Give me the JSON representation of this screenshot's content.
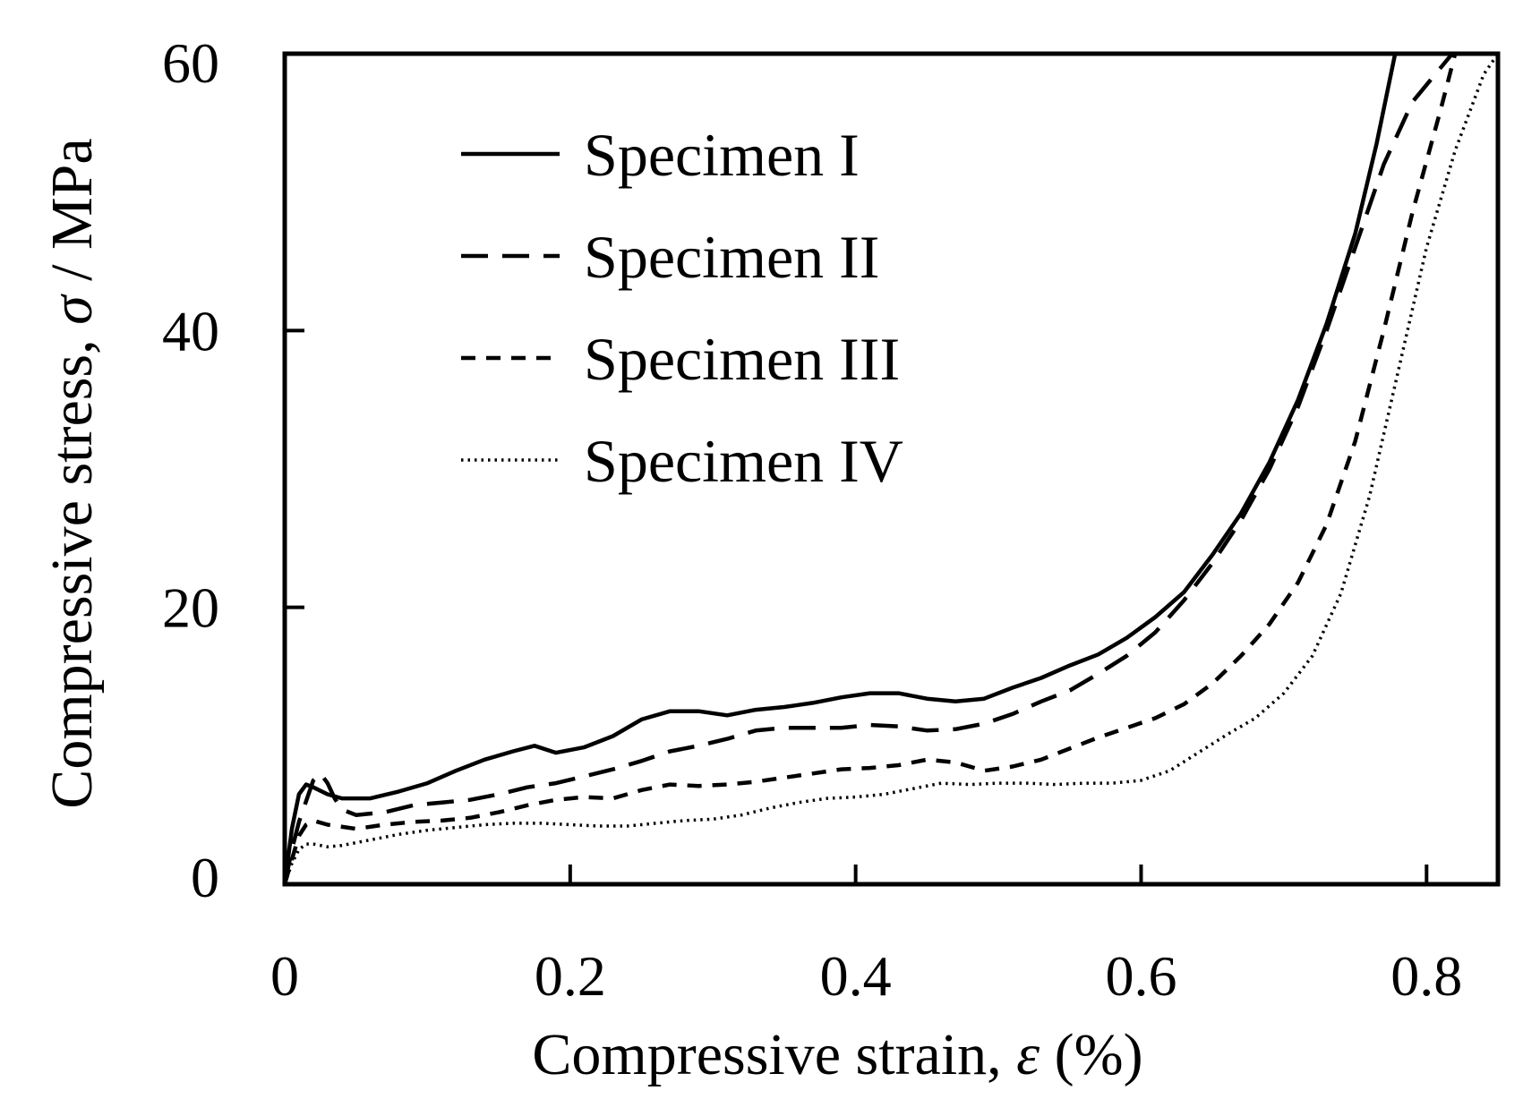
{
  "chart_data": {
    "type": "line",
    "title": "",
    "xlabel": "Compressive strain, ",
    "xlabel_symbol": "ε",
    "xlabel_unit": " (%)",
    "ylabel": "Compressive stress, ",
    "ylabel_symbol": "σ",
    "ylabel_unit": " / MPa",
    "xlim": [
      0,
      0.85
    ],
    "ylim": [
      0,
      60
    ],
    "xticks": [
      {
        "value": 0,
        "label": "0"
      },
      {
        "value": 0.2,
        "label": "0.2"
      },
      {
        "value": 0.4,
        "label": "0.4"
      },
      {
        "value": 0.6,
        "label": "0.6"
      },
      {
        "value": 0.8,
        "label": "0.8"
      }
    ],
    "yticks": [
      {
        "value": 0,
        "label": "0"
      },
      {
        "value": 20,
        "label": "20"
      },
      {
        "value": 40,
        "label": "40"
      },
      {
        "value": 60,
        "label": "60"
      }
    ],
    "grid": false,
    "legend_position": "top-left",
    "series": [
      {
        "name": "Specimen I",
        "style": "solid",
        "points": [
          [
            0,
            0
          ],
          [
            0.005,
            4
          ],
          [
            0.01,
            6.5
          ],
          [
            0.015,
            7.2
          ],
          [
            0.02,
            7.0
          ],
          [
            0.03,
            6.5
          ],
          [
            0.04,
            6.2
          ],
          [
            0.06,
            6.2
          ],
          [
            0.08,
            6.7
          ],
          [
            0.1,
            7.3
          ],
          [
            0.12,
            8.2
          ],
          [
            0.14,
            9.0
          ],
          [
            0.16,
            9.6
          ],
          [
            0.175,
            10.0
          ],
          [
            0.19,
            9.5
          ],
          [
            0.21,
            9.9
          ],
          [
            0.23,
            10.7
          ],
          [
            0.25,
            11.9
          ],
          [
            0.27,
            12.5
          ],
          [
            0.29,
            12.5
          ],
          [
            0.31,
            12.2
          ],
          [
            0.33,
            12.6
          ],
          [
            0.35,
            12.8
          ],
          [
            0.37,
            13.1
          ],
          [
            0.39,
            13.5
          ],
          [
            0.41,
            13.8
          ],
          [
            0.43,
            13.8
          ],
          [
            0.45,
            13.4
          ],
          [
            0.47,
            13.2
          ],
          [
            0.49,
            13.4
          ],
          [
            0.51,
            14.2
          ],
          [
            0.53,
            14.9
          ],
          [
            0.55,
            15.8
          ],
          [
            0.57,
            16.6
          ],
          [
            0.59,
            17.8
          ],
          [
            0.61,
            19.3
          ],
          [
            0.63,
            21.1
          ],
          [
            0.65,
            23.8
          ],
          [
            0.67,
            26.8
          ],
          [
            0.69,
            30.5
          ],
          [
            0.71,
            35.0
          ],
          [
            0.73,
            40.5
          ],
          [
            0.75,
            47.0
          ],
          [
            0.765,
            53.5
          ],
          [
            0.778,
            60.0
          ]
        ]
      },
      {
        "name": "Specimen II",
        "style": "long-dash",
        "points": [
          [
            0,
            0
          ],
          [
            0.005,
            2.5
          ],
          [
            0.01,
            4.5
          ],
          [
            0.015,
            6.0
          ],
          [
            0.02,
            7.5
          ],
          [
            0.025,
            8.0
          ],
          [
            0.03,
            7.3
          ],
          [
            0.035,
            6.2
          ],
          [
            0.04,
            5.4
          ],
          [
            0.05,
            5.0
          ],
          [
            0.07,
            5.2
          ],
          [
            0.09,
            5.7
          ],
          [
            0.11,
            5.9
          ],
          [
            0.13,
            6.1
          ],
          [
            0.15,
            6.5
          ],
          [
            0.17,
            7.0
          ],
          [
            0.19,
            7.3
          ],
          [
            0.21,
            7.8
          ],
          [
            0.23,
            8.3
          ],
          [
            0.25,
            8.9
          ],
          [
            0.27,
            9.6
          ],
          [
            0.29,
            10.0
          ],
          [
            0.31,
            10.5
          ],
          [
            0.33,
            11.1
          ],
          [
            0.35,
            11.3
          ],
          [
            0.37,
            11.3
          ],
          [
            0.39,
            11.3
          ],
          [
            0.41,
            11.5
          ],
          [
            0.43,
            11.4
          ],
          [
            0.45,
            11.1
          ],
          [
            0.47,
            11.2
          ],
          [
            0.49,
            11.6
          ],
          [
            0.51,
            12.3
          ],
          [
            0.53,
            13.2
          ],
          [
            0.55,
            14.0
          ],
          [
            0.57,
            15.2
          ],
          [
            0.59,
            16.5
          ],
          [
            0.61,
            18.2
          ],
          [
            0.63,
            20.5
          ],
          [
            0.65,
            23.2
          ],
          [
            0.67,
            26.3
          ],
          [
            0.69,
            30.0
          ],
          [
            0.71,
            34.5
          ],
          [
            0.73,
            40.0
          ],
          [
            0.75,
            46.0
          ],
          [
            0.77,
            52.0
          ],
          [
            0.79,
            56.5
          ],
          [
            0.81,
            59.0
          ],
          [
            0.818,
            60.0
          ]
        ]
      },
      {
        "name": "Specimen III",
        "style": "short-dash",
        "points": [
          [
            0,
            0
          ],
          [
            0.005,
            1.8
          ],
          [
            0.01,
            3.5
          ],
          [
            0.015,
            4.3
          ],
          [
            0.02,
            4.6
          ],
          [
            0.03,
            4.3
          ],
          [
            0.05,
            4.0
          ],
          [
            0.07,
            4.3
          ],
          [
            0.09,
            4.5
          ],
          [
            0.11,
            4.6
          ],
          [
            0.13,
            4.8
          ],
          [
            0.15,
            5.2
          ],
          [
            0.17,
            5.7
          ],
          [
            0.19,
            6.1
          ],
          [
            0.21,
            6.3
          ],
          [
            0.23,
            6.2
          ],
          [
            0.25,
            6.8
          ],
          [
            0.27,
            7.2
          ],
          [
            0.29,
            7.1
          ],
          [
            0.31,
            7.2
          ],
          [
            0.33,
            7.4
          ],
          [
            0.35,
            7.7
          ],
          [
            0.37,
            8.0
          ],
          [
            0.39,
            8.3
          ],
          [
            0.41,
            8.4
          ],
          [
            0.43,
            8.6
          ],
          [
            0.45,
            9.0
          ],
          [
            0.47,
            8.8
          ],
          [
            0.49,
            8.2
          ],
          [
            0.51,
            8.5
          ],
          [
            0.53,
            9.0
          ],
          [
            0.55,
            9.8
          ],
          [
            0.57,
            10.6
          ],
          [
            0.59,
            11.3
          ],
          [
            0.61,
            12.0
          ],
          [
            0.63,
            13.0
          ],
          [
            0.65,
            14.5
          ],
          [
            0.67,
            16.5
          ],
          [
            0.69,
            18.8
          ],
          [
            0.71,
            21.8
          ],
          [
            0.73,
            26.0
          ],
          [
            0.75,
            32.0
          ],
          [
            0.77,
            40.0
          ],
          [
            0.79,
            48.5
          ],
          [
            0.81,
            56.0
          ],
          [
            0.82,
            60.0
          ]
        ]
      },
      {
        "name": "Specimen IV",
        "style": "dotted",
        "points": [
          [
            0,
            0
          ],
          [
            0.005,
            1.5
          ],
          [
            0.01,
            2.5
          ],
          [
            0.015,
            2.9
          ],
          [
            0.02,
            2.9
          ],
          [
            0.03,
            2.7
          ],
          [
            0.04,
            2.8
          ],
          [
            0.06,
            3.2
          ],
          [
            0.08,
            3.6
          ],
          [
            0.1,
            3.9
          ],
          [
            0.12,
            4.1
          ],
          [
            0.14,
            4.3
          ],
          [
            0.16,
            4.4
          ],
          [
            0.18,
            4.4
          ],
          [
            0.2,
            4.3
          ],
          [
            0.22,
            4.2
          ],
          [
            0.24,
            4.2
          ],
          [
            0.26,
            4.4
          ],
          [
            0.28,
            4.6
          ],
          [
            0.3,
            4.7
          ],
          [
            0.32,
            5.0
          ],
          [
            0.34,
            5.5
          ],
          [
            0.36,
            5.9
          ],
          [
            0.38,
            6.2
          ],
          [
            0.4,
            6.3
          ],
          [
            0.42,
            6.5
          ],
          [
            0.44,
            6.9
          ],
          [
            0.46,
            7.3
          ],
          [
            0.48,
            7.2
          ],
          [
            0.5,
            7.3
          ],
          [
            0.52,
            7.3
          ],
          [
            0.54,
            7.2
          ],
          [
            0.56,
            7.3
          ],
          [
            0.58,
            7.3
          ],
          [
            0.6,
            7.5
          ],
          [
            0.62,
            8.2
          ],
          [
            0.64,
            9.5
          ],
          [
            0.66,
            10.8
          ],
          [
            0.68,
            12.0
          ],
          [
            0.7,
            13.8
          ],
          [
            0.72,
            16.5
          ],
          [
            0.74,
            21.0
          ],
          [
            0.76,
            28.0
          ],
          [
            0.78,
            37.0
          ],
          [
            0.8,
            46.0
          ],
          [
            0.82,
            53.0
          ],
          [
            0.84,
            58.5
          ],
          [
            0.85,
            60.0
          ]
        ]
      }
    ]
  }
}
